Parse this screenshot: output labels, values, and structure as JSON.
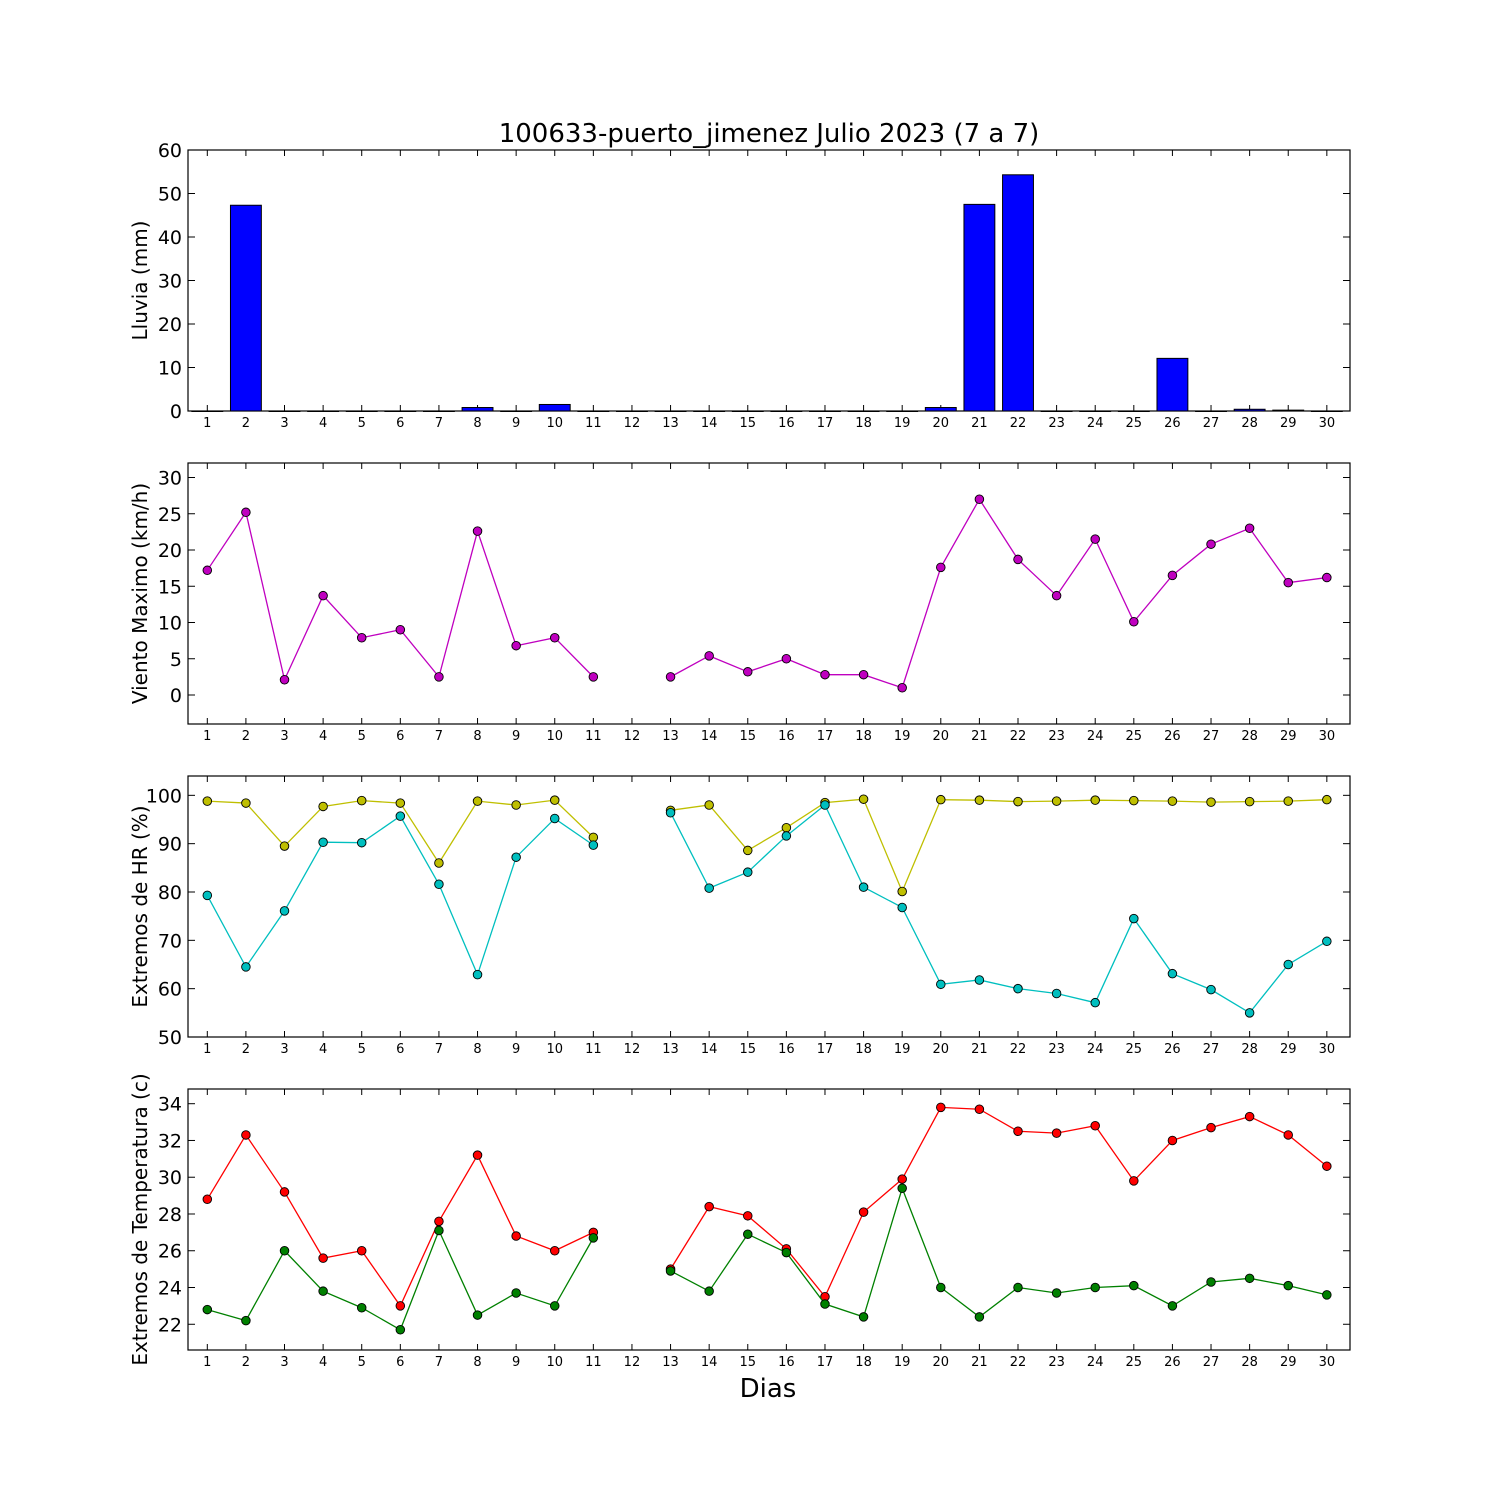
{
  "chart_data": {
    "title": "100633-puerto_jimenez Julio 2023  (7 a 7)",
    "xlabel": "Dias",
    "days": [
      1,
      2,
      3,
      4,
      5,
      6,
      7,
      8,
      9,
      10,
      11,
      12,
      13,
      14,
      15,
      16,
      17,
      18,
      19,
      20,
      21,
      22,
      23,
      24,
      25,
      26,
      27,
      28,
      29,
      30
    ],
    "panels": [
      {
        "type": "bar",
        "ylabel": "Lluvia (mm)",
        "ylim": [
          0,
          60
        ],
        "yticks": [
          0,
          10,
          20,
          30,
          40,
          50,
          60
        ],
        "series": [
          {
            "color": "#0000ff",
            "values": [
              0,
              47.3,
              0,
              0,
              0,
              0,
              0,
              0.8,
              0,
              1.5,
              0,
              0,
              0,
              0,
              0,
              0,
              0,
              0,
              0,
              0.8,
              47.5,
              54.3,
              0,
              0,
              0,
              12.1,
              0,
              0.4,
              0.2,
              0
            ]
          }
        ]
      },
      {
        "type": "line",
        "ylabel": "Viento Maximo (km/h)",
        "ylim": [
          -4,
          32
        ],
        "yticks": [
          0,
          5,
          10,
          15,
          20,
          25,
          30
        ],
        "series": [
          {
            "color": "#bf00bf",
            "values": [
              17.2,
              25.2,
              2.1,
              13.7,
              7.9,
              9.0,
              2.5,
              22.6,
              6.8,
              7.9,
              2.5,
              null,
              2.5,
              5.4,
              3.2,
              5.0,
              2.8,
              2.8,
              1.0,
              17.6,
              27.0,
              18.7,
              13.7,
              21.5,
              10.1,
              16.5,
              20.8,
              23.0,
              15.5,
              16.2
            ]
          }
        ]
      },
      {
        "type": "line",
        "ylabel": "Extremos de HR (%)",
        "ylim": [
          50,
          104
        ],
        "yticks": [
          50,
          60,
          70,
          80,
          90,
          100
        ],
        "series": [
          {
            "color": "#bfbf00",
            "values": [
              98.8,
              98.4,
              89.5,
              97.7,
              98.9,
              98.4,
              86.0,
              98.8,
              98.0,
              99.0,
              91.3,
              null,
              96.9,
              98.0,
              88.6,
              93.3,
              98.5,
              99.2,
              80.1,
              99.1,
              99.0,
              98.7,
              98.8,
              99.0,
              98.9,
              98.8,
              98.6,
              98.7,
              98.8,
              99.1
            ]
          },
          {
            "color": "#00bfbf",
            "values": [
              79.3,
              64.5,
              76.1,
              90.3,
              90.2,
              95.7,
              81.6,
              62.9,
              87.2,
              95.2,
              89.7,
              null,
              96.4,
              80.8,
              84.1,
              91.6,
              98.0,
              81.0,
              76.8,
              60.9,
              61.8,
              60.0,
              59.0,
              57.1,
              74.5,
              63.1,
              59.8,
              55.0,
              65.0,
              69.8
            ]
          }
        ]
      },
      {
        "type": "line",
        "ylabel": "Extremos de Temperatura (c)",
        "ylim": [
          20.6,
          34.8
        ],
        "yticks": [
          22,
          24,
          26,
          28,
          30,
          32,
          34
        ],
        "series": [
          {
            "color": "#ff0000",
            "values": [
              28.8,
              32.3,
              29.2,
              25.6,
              26.0,
              23.0,
              27.6,
              31.2,
              26.8,
              26.0,
              27.0,
              null,
              25.0,
              28.4,
              27.9,
              26.1,
              23.5,
              28.1,
              29.9,
              33.8,
              33.7,
              32.5,
              32.4,
              32.8,
              29.8,
              32.0,
              32.7,
              33.3,
              32.3,
              30.6
            ]
          },
          {
            "color": "#008000",
            "values": [
              22.8,
              22.2,
              26.0,
              23.8,
              22.9,
              21.7,
              27.1,
              22.5,
              23.7,
              23.0,
              26.7,
              null,
              24.9,
              23.8,
              26.9,
              25.9,
              23.1,
              22.4,
              29.4,
              24.0,
              22.4,
              24.0,
              23.7,
              24.0,
              24.1,
              23.0,
              24.3,
              24.5,
              24.1,
              23.6
            ]
          }
        ]
      }
    ]
  }
}
